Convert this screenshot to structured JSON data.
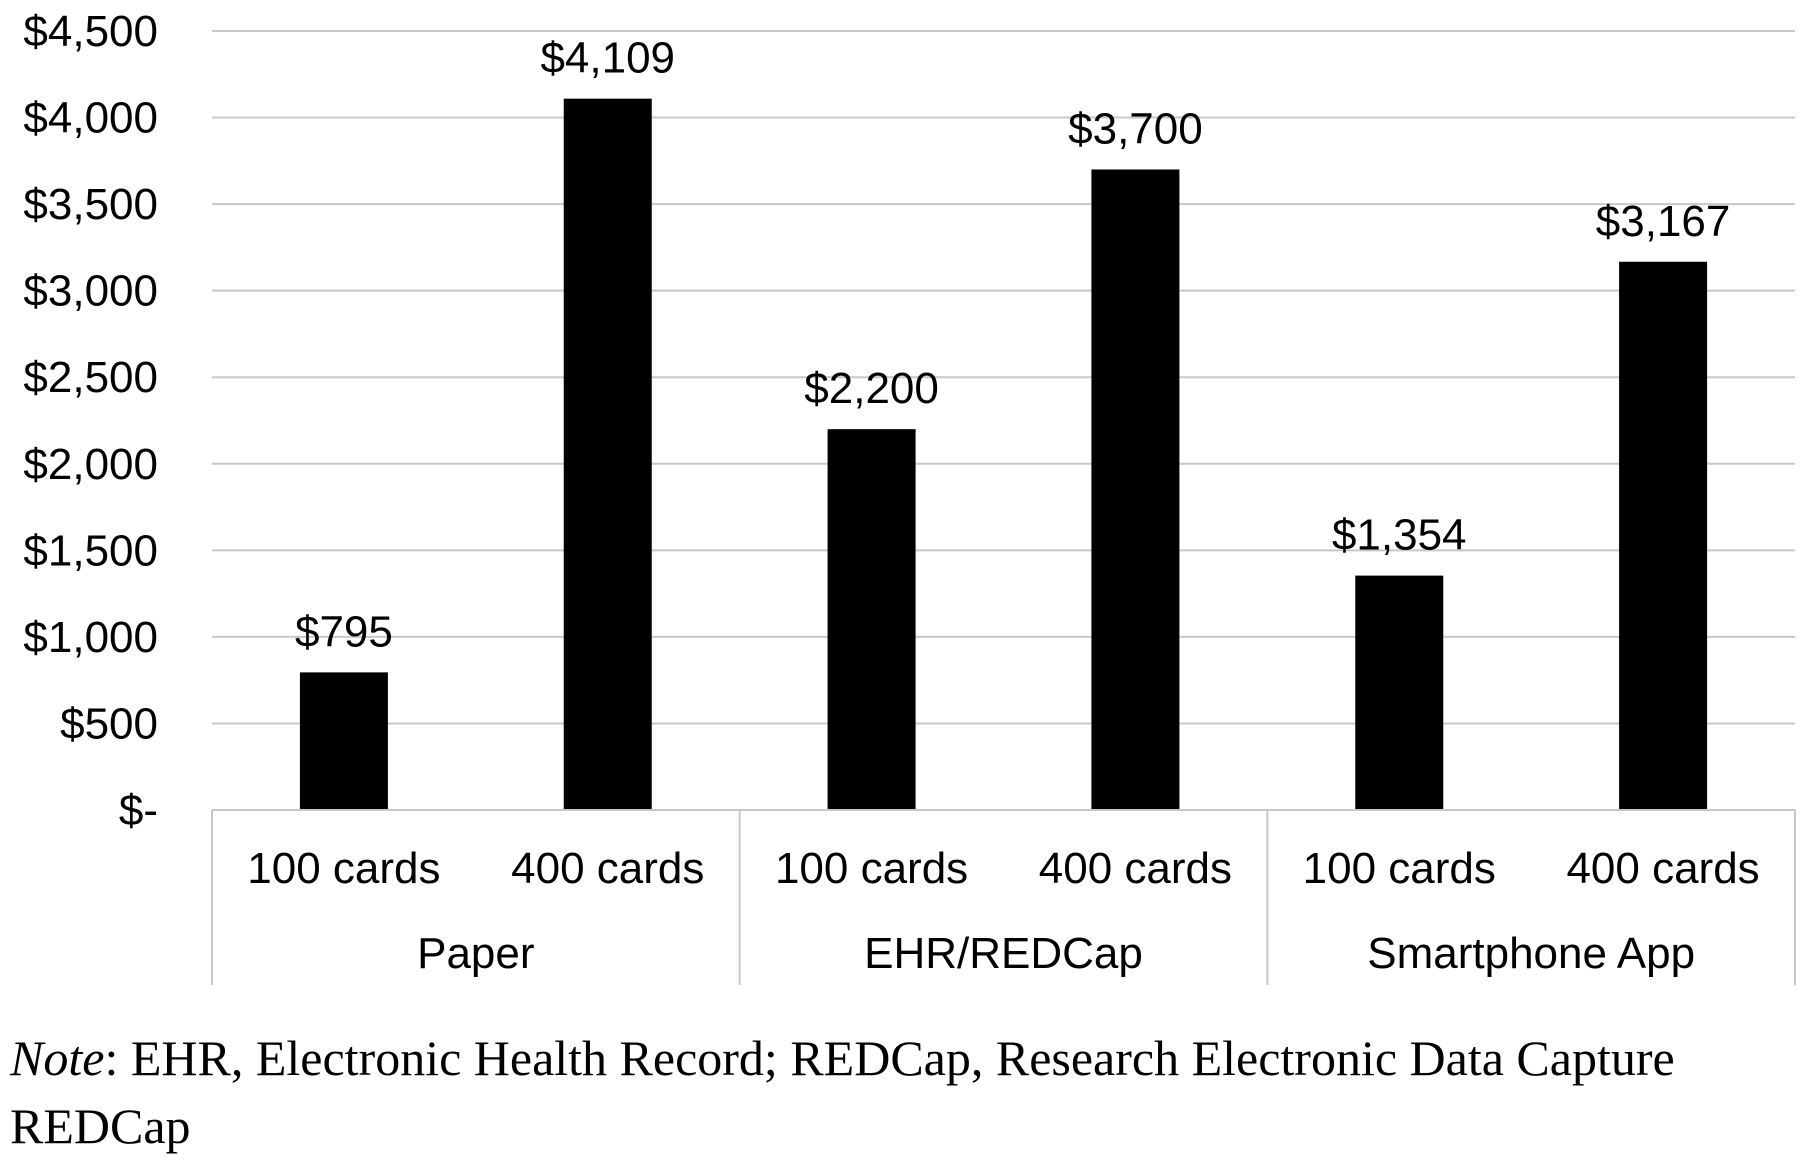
{
  "chart_data": {
    "type": "bar",
    "groups": [
      {
        "name": "Paper",
        "bars": [
          {
            "category": "100 cards",
            "value": 795,
            "label": "$795"
          },
          {
            "category": "400 cards",
            "value": 4109,
            "label": "$4,109"
          }
        ]
      },
      {
        "name": "EHR/REDCap",
        "bars": [
          {
            "category": "100 cards",
            "value": 2200,
            "label": "$2,200"
          },
          {
            "category": "400 cards",
            "value": 3700,
            "label": "$3,700"
          }
        ]
      },
      {
        "name": "Smartphone App",
        "bars": [
          {
            "category": "100 cards",
            "value": 1354,
            "label": "$1,354"
          },
          {
            "category": "400 cards",
            "value": 3167,
            "label": "$3,167"
          }
        ]
      }
    ],
    "yticks": [
      {
        "value": 0,
        "label": "$-"
      },
      {
        "value": 500,
        "label": "$500"
      },
      {
        "value": 1000,
        "label": "$1,000"
      },
      {
        "value": 1500,
        "label": "$1,500"
      },
      {
        "value": 2000,
        "label": "$2,000"
      },
      {
        "value": 2500,
        "label": "$2,500"
      },
      {
        "value": 3000,
        "label": "$3,000"
      },
      {
        "value": 3500,
        "label": "$3,500"
      },
      {
        "value": 4000,
        "label": "$4,000"
      },
      {
        "value": 4500,
        "label": "$4,500"
      }
    ],
    "ylim": [
      0,
      4500
    ],
    "grid": true,
    "bar_color": "#000000",
    "grid_color": "#c8c8c8"
  },
  "note": {
    "label": "Note",
    "text": ": EHR, Electronic Health Record; REDCap, Research Electronic Data Capture REDCap"
  }
}
